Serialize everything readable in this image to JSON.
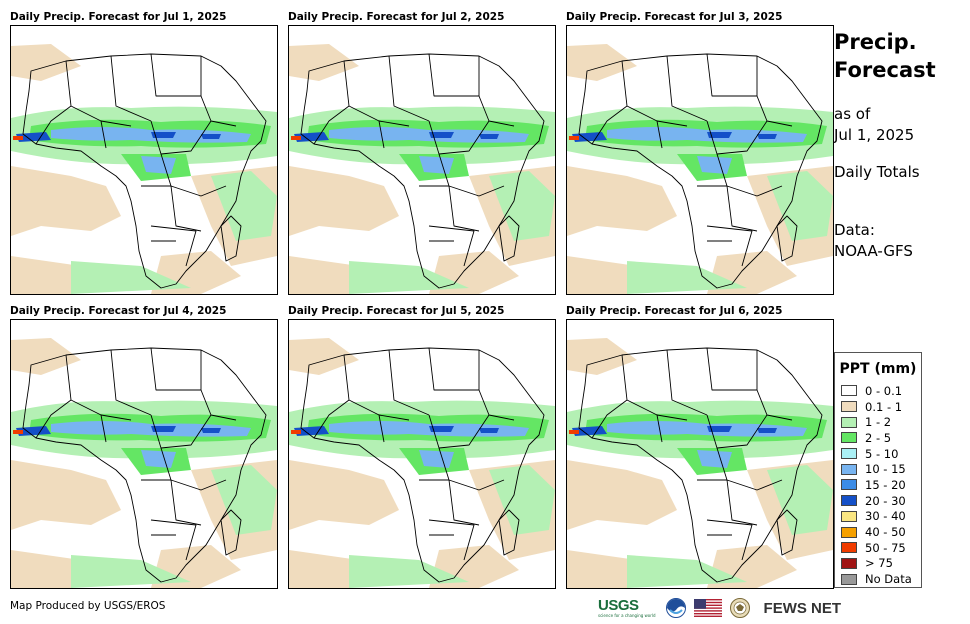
{
  "panels": [
    {
      "title": "Daily Precip. Forecast for Jul 1, 2025"
    },
    {
      "title": "Daily Precip. Forecast for Jul 2, 2025"
    },
    {
      "title": "Daily Precip. Forecast for Jul 3, 2025"
    },
    {
      "title": "Daily Precip. Forecast for Jul 4, 2025"
    },
    {
      "title": "Daily Precip. Forecast for Jul 5, 2025"
    },
    {
      "title": "Daily Precip. Forecast for Jul 6, 2025"
    }
  ],
  "sidebar": {
    "title_line1": "Precip.",
    "title_line2": "Forecast",
    "as_of_label": "as of",
    "as_of_date": "Jul 1, 2025",
    "totals": "Daily Totals",
    "data_label": "Data:",
    "data_source": "NOAA-GFS"
  },
  "legend": {
    "title": "PPT (mm)",
    "items": [
      {
        "label": "0 - 0.1",
        "color": "#ffffff"
      },
      {
        "label": "0.1 - 1",
        "color": "#f0dcbe"
      },
      {
        "label": "1 - 2",
        "color": "#b4f0b4"
      },
      {
        "label": "2 - 5",
        "color": "#64e664"
      },
      {
        "label": "5 - 10",
        "color": "#aaf0f5"
      },
      {
        "label": "10 - 15",
        "color": "#78b4f0"
      },
      {
        "label": "15 - 20",
        "color": "#3c8ce6"
      },
      {
        "label": "20 - 30",
        "color": "#1450c8"
      },
      {
        "label": "30 - 40",
        "color": "#fae682"
      },
      {
        "label": "40 - 50",
        "color": "#f5a000"
      },
      {
        "label": "50 - 75",
        "color": "#f03c00"
      },
      {
        "label": "> 75",
        "color": "#a01414"
      },
      {
        "label": "No Data",
        "color": "#999999"
      }
    ]
  },
  "footer": {
    "credit": "Map Produced by USGS/EROS",
    "usgs_label": "USGS",
    "usgs_tagline": "science for a changing world",
    "fews_label": "FEWS NET"
  }
}
